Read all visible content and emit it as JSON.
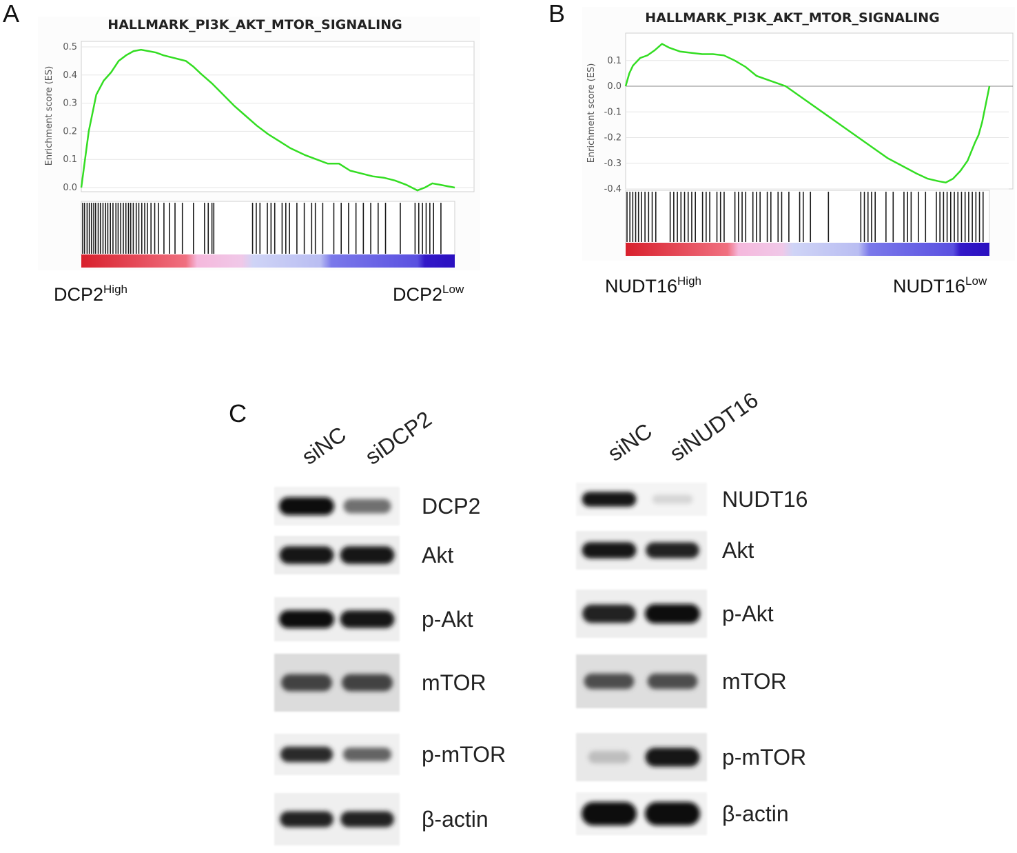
{
  "chart_data": [
    {
      "type": "line",
      "panel": "A",
      "title": "HALLMARK_PI3K_AKT_MTOR_SIGNALING",
      "ylabel": "Enrichment score (ES)",
      "ylim": [
        0,
        0.5
      ],
      "yticks": [
        "0.0",
        "0.1",
        "0.2",
        "0.3",
        "0.4",
        "0.5"
      ],
      "x": [
        0,
        0.01,
        0.02,
        0.04,
        0.06,
        0.08,
        0.1,
        0.12,
        0.14,
        0.16,
        0.18,
        0.2,
        0.22,
        0.25,
        0.28,
        0.3,
        0.32,
        0.35,
        0.38,
        0.41,
        0.44,
        0.47,
        0.5,
        0.53,
        0.56,
        0.6,
        0.63,
        0.66,
        0.69,
        0.72,
        0.75,
        0.78,
        0.81,
        0.84,
        0.87,
        0.9,
        0.92,
        0.94,
        0.96,
        0.98,
        1.0
      ],
      "values": [
        0.0,
        0.1,
        0.2,
        0.33,
        0.38,
        0.41,
        0.45,
        0.47,
        0.485,
        0.49,
        0.485,
        0.48,
        0.47,
        0.46,
        0.45,
        0.43,
        0.405,
        0.37,
        0.33,
        0.29,
        0.255,
        0.22,
        0.19,
        0.165,
        0.14,
        0.115,
        0.1,
        0.085,
        0.085,
        0.06,
        0.05,
        0.04,
        0.035,
        0.025,
        0.01,
        -0.01,
        0.0,
        0.015,
        0.01,
        0.005,
        0.0
      ],
      "color": "#33dd22",
      "hits": [
        0.0,
        0.005,
        0.012,
        0.018,
        0.024,
        0.03,
        0.035,
        0.042,
        0.048,
        0.055,
        0.062,
        0.068,
        0.075,
        0.082,
        0.09,
        0.096,
        0.103,
        0.11,
        0.117,
        0.124,
        0.13,
        0.137,
        0.145,
        0.152,
        0.16,
        0.168,
        0.175,
        0.185,
        0.195,
        0.205,
        0.22,
        0.235,
        0.25,
        0.27,
        0.3,
        0.33,
        0.34,
        0.35,
        0.355,
        0.46,
        0.47,
        0.48,
        0.5,
        0.51,
        0.52,
        0.54,
        0.55,
        0.56,
        0.58,
        0.6,
        0.62,
        0.63,
        0.65,
        0.68,
        0.7,
        0.72,
        0.74,
        0.76,
        0.78,
        0.8,
        0.82,
        0.86,
        0.9,
        0.91,
        0.92,
        0.93,
        0.94,
        0.95,
        0.97
      ],
      "groups": {
        "left": "DCP2",
        "left_sup": "High",
        "right": "DCP2",
        "right_sup": "Low"
      }
    },
    {
      "type": "line",
      "panel": "B",
      "title": "HALLMARK_PI3K_AKT_MTOR_SIGNALING",
      "ylabel": "Enrichment score (ES)",
      "ylim": [
        -0.4,
        0.18
      ],
      "yticks": [
        "0.1",
        "0.0",
        "-0.1",
        "-0.2",
        "-0.3",
        "-0.4"
      ],
      "x": [
        0,
        0.01,
        0.02,
        0.04,
        0.06,
        0.08,
        0.1,
        0.12,
        0.15,
        0.18,
        0.21,
        0.24,
        0.27,
        0.3,
        0.33,
        0.36,
        0.4,
        0.44,
        0.48,
        0.52,
        0.56,
        0.6,
        0.64,
        0.68,
        0.72,
        0.76,
        0.8,
        0.83,
        0.86,
        0.88,
        0.9,
        0.92,
        0.94,
        0.96,
        0.97,
        0.98,
        0.99,
        1.0
      ],
      "values": [
        0.0,
        0.05,
        0.08,
        0.11,
        0.12,
        0.14,
        0.165,
        0.15,
        0.135,
        0.13,
        0.125,
        0.125,
        0.12,
        0.1,
        0.075,
        0.04,
        0.02,
        0.0,
        -0.04,
        -0.08,
        -0.12,
        -0.16,
        -0.2,
        -0.24,
        -0.28,
        -0.31,
        -0.34,
        -0.36,
        -0.37,
        -0.375,
        -0.36,
        -0.33,
        -0.29,
        -0.22,
        -0.19,
        -0.14,
        -0.07,
        0.0
      ],
      "color": "#33dd22",
      "hits": [
        0.0,
        0.008,
        0.016,
        0.024,
        0.032,
        0.04,
        0.05,
        0.06,
        0.07,
        0.08,
        0.12,
        0.13,
        0.14,
        0.15,
        0.16,
        0.17,
        0.18,
        0.19,
        0.21,
        0.22,
        0.23,
        0.25,
        0.26,
        0.27,
        0.3,
        0.31,
        0.32,
        0.33,
        0.35,
        0.36,
        0.37,
        0.39,
        0.4,
        0.42,
        0.43,
        0.45,
        0.48,
        0.49,
        0.51,
        0.56,
        0.65,
        0.66,
        0.67,
        0.68,
        0.69,
        0.72,
        0.74,
        0.77,
        0.78,
        0.79,
        0.81,
        0.83,
        0.86,
        0.87,
        0.88,
        0.89,
        0.9,
        0.91,
        0.92,
        0.93,
        0.94,
        0.95,
        0.96,
        0.97,
        0.98,
        0.99
      ],
      "groups": {
        "left": "NUDT16",
        "left_sup": "High",
        "right": "NUDT16",
        "right_sup": "Low"
      }
    }
  ],
  "labels": {
    "A": "A",
    "B": "B",
    "C": "C"
  },
  "blot_left": {
    "lanes": [
      "siNC",
      "siDCP2"
    ],
    "proteins": [
      "DCP2",
      "Akt",
      "p-Akt",
      "mTOR",
      "p-mTOR",
      "β-actin"
    ],
    "intensity": [
      [
        1.0,
        0.55
      ],
      [
        0.95,
        0.95
      ],
      [
        1.0,
        0.95
      ],
      [
        0.75,
        0.75
      ],
      [
        0.85,
        0.6
      ],
      [
        0.9,
        0.9
      ]
    ]
  },
  "blot_right": {
    "lanes": [
      "siNC",
      "siNUDT16"
    ],
    "proteins": [
      "NUDT16",
      "Akt",
      "p-Akt",
      "mTOR",
      "p-mTOR",
      "β-actin"
    ],
    "intensity": [
      [
        0.95,
        0.1
      ],
      [
        0.95,
        0.9
      ],
      [
        0.9,
        1.0
      ],
      [
        0.7,
        0.7
      ],
      [
        0.2,
        0.95
      ],
      [
        1.0,
        1.0
      ]
    ]
  }
}
